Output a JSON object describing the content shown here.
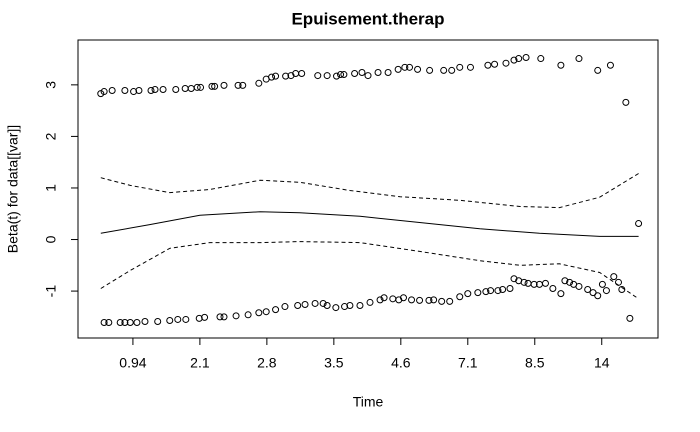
{
  "chart_data": {
    "type": "scatter",
    "title": "Epuisement.therap",
    "xlabel": "Time",
    "ylabel": "Beta(t) for data[[var]]",
    "x_categories": [
      "0.94",
      "2.1",
      "2.8",
      "3.5",
      "4.6",
      "7.1",
      "8.5",
      "14"
    ],
    "xlim": [
      -0.82,
      7.84
    ],
    "ylim": [
      -1.91,
      3.87
    ],
    "yticks": [
      -1,
      0,
      1,
      2,
      3
    ],
    "point_color": "#000000",
    "x": [
      -0.48,
      -0.43,
      -0.31,
      -0.12,
      0.01,
      0.09,
      0.27,
      0.33,
      0.45,
      0.64,
      0.78,
      0.87,
      0.96,
      1.01,
      1.18,
      1.22,
      1.36,
      1.57,
      1.64,
      1.88,
      1.99,
      2.07,
      2.13,
      2.28,
      2.36,
      2.43,
      2.52,
      2.76,
      2.9,
      3.04,
      3.1,
      3.15,
      3.31,
      3.42,
      3.51,
      3.66,
      3.81,
      3.96,
      4.06,
      4.13,
      4.25,
      4.43,
      4.64,
      4.76,
      4.88,
      5.04,
      5.3,
      5.4,
      5.57,
      5.69,
      5.76,
      5.87,
      6.09,
      6.39,
      6.66,
      6.94,
      7.13,
      7.36,
      7.55,
      -0.43,
      -0.36,
      -0.19,
      -0.12,
      -0.04,
      0.06,
      0.18,
      0.37,
      0.55,
      0.67,
      0.79,
      0.99,
      1.07,
      1.3,
      1.36,
      1.54,
      1.72,
      1.88,
      1.99,
      2.13,
      2.27,
      2.46,
      2.57,
      2.72,
      2.84,
      2.9,
      3.03,
      3.16,
      3.24,
      3.39,
      3.54,
      3.69,
      3.75,
      3.88,
      3.97,
      4.04,
      4.16,
      4.28,
      4.42,
      4.49,
      4.61,
      4.73,
      4.88,
      5.0,
      5.15,
      5.27,
      5.34,
      5.45,
      5.52,
      5.63,
      5.69,
      5.76,
      5.84,
      5.9,
      5.99,
      6.07,
      6.16,
      6.27,
      6.39,
      6.45,
      6.52,
      6.58,
      6.66,
      6.79,
      6.87,
      6.94,
      7.01,
      7.07,
      7.18,
      7.25,
      7.3,
      7.42
    ],
    "y": [
      2.83,
      2.87,
      2.89,
      2.89,
      2.87,
      2.89,
      2.89,
      2.91,
      2.91,
      2.91,
      2.93,
      2.93,
      2.95,
      2.95,
      2.97,
      2.97,
      2.99,
      2.99,
      2.99,
      3.03,
      3.11,
      3.15,
      3.17,
      3.17,
      3.18,
      3.22,
      3.22,
      3.18,
      3.18,
      3.17,
      3.2,
      3.2,
      3.22,
      3.24,
      3.18,
      3.24,
      3.24,
      3.3,
      3.34,
      3.34,
      3.3,
      3.28,
      3.28,
      3.28,
      3.34,
      3.34,
      3.38,
      3.4,
      3.42,
      3.48,
      3.51,
      3.53,
      3.51,
      3.38,
      3.51,
      3.28,
      3.38,
      2.66,
      0.31,
      -1.61,
      -1.61,
      -1.61,
      -1.61,
      -1.61,
      -1.61,
      -1.59,
      -1.59,
      -1.57,
      -1.55,
      -1.55,
      -1.53,
      -1.51,
      -1.5,
      -1.5,
      -1.48,
      -1.46,
      -1.42,
      -1.4,
      -1.36,
      -1.3,
      -1.28,
      -1.26,
      -1.24,
      -1.24,
      -1.28,
      -1.32,
      -1.3,
      -1.28,
      -1.28,
      -1.22,
      -1.17,
      -1.13,
      -1.15,
      -1.17,
      -1.13,
      -1.17,
      -1.18,
      -1.18,
      -1.17,
      -1.2,
      -1.2,
      -1.11,
      -1.05,
      -1.03,
      -1.01,
      -0.99,
      -0.99,
      -0.97,
      -0.95,
      -0.76,
      -0.8,
      -0.83,
      -0.85,
      -0.87,
      -0.87,
      -0.85,
      -0.95,
      -1.05,
      -0.8,
      -0.83,
      -0.87,
      -0.91,
      -0.97,
      -1.03,
      -1.09,
      -0.87,
      -0.99,
      -0.72,
      -0.83,
      -0.97,
      -1.53
    ],
    "lines": [
      {
        "style": "solid",
        "color": "#000000",
        "x": [
          -0.48,
          0.25,
          1.0,
          1.9,
          2.49,
          3.39,
          4.28,
          5.18,
          6.07,
          6.97,
          7.55
        ],
        "y": [
          0.12,
          0.29,
          0.47,
          0.54,
          0.52,
          0.45,
          0.33,
          0.21,
          0.12,
          0.06,
          0.06
        ]
      },
      {
        "style": "dashed",
        "color": "#000000",
        "x": [
          -0.48,
          -0.04,
          0.55,
          1.15,
          1.9,
          2.49,
          3.24,
          3.99,
          4.88,
          5.78,
          6.37,
          6.97,
          7.55
        ],
        "y": [
          1.2,
          1.05,
          0.91,
          0.97,
          1.15,
          1.11,
          0.95,
          0.83,
          0.76,
          0.64,
          0.62,
          0.82,
          1.28
        ]
      },
      {
        "style": "dashed",
        "color": "#000000",
        "x": [
          -0.48,
          -0.04,
          0.55,
          1.15,
          1.9,
          2.49,
          3.39,
          4.28,
          5.18,
          5.78,
          6.37,
          6.97,
          7.55
        ],
        "y": [
          -0.95,
          -0.6,
          -0.17,
          -0.06,
          -0.06,
          -0.04,
          -0.06,
          -0.23,
          -0.41,
          -0.5,
          -0.47,
          -0.64,
          -1.15
        ]
      }
    ]
  }
}
